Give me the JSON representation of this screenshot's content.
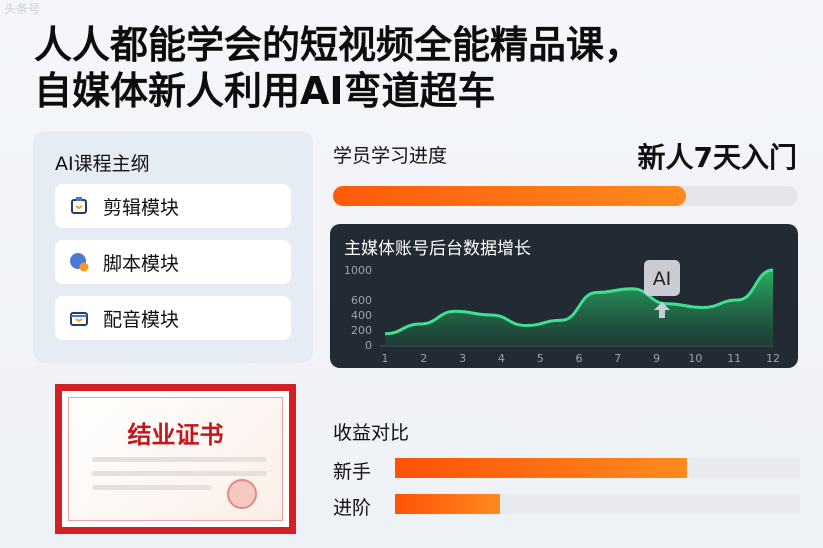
{
  "watermark": "头条号",
  "title": {
    "line1": "人人都能学会的短视频全能精品课，",
    "line2": "自媒体新人利用AI弯道超车"
  },
  "outline": {
    "heading": "AI课程主纲",
    "modules": [
      {
        "label": "剪辑模块",
        "icon": "clipboard-icon"
      },
      {
        "label": "脚本模块",
        "icon": "globe-badge-icon"
      },
      {
        "label": "配音模块",
        "icon": "briefcase-icon"
      }
    ]
  },
  "certificate": {
    "title": "结业证书"
  },
  "progress": {
    "label": "学员学习进度",
    "badge": "新人7天入门",
    "percent": 76,
    "color": "#ff6a10"
  },
  "chart_data": {
    "type": "area",
    "title": "主媒体账号后台数据增长",
    "x_ticks": [
      "1",
      "2",
      "3",
      "4",
      "5",
      "6",
      "7",
      "9",
      "10",
      "11",
      "12"
    ],
    "y_ticks": [
      "0",
      "200",
      "400",
      "600",
      "1000"
    ],
    "ylim": [
      0,
      1000
    ],
    "x": [
      1,
      2,
      3,
      4,
      5,
      6,
      7,
      8,
      9,
      10,
      11,
      12
    ],
    "values": [
      150,
      280,
      450,
      400,
      260,
      330,
      700,
      750,
      550,
      500,
      600,
      1000
    ],
    "annotation": "AI",
    "line_color": "#3ee08f"
  },
  "income": {
    "label": "收益对比",
    "rows": [
      {
        "label": "新手",
        "percent": 72
      },
      {
        "label": "进阶",
        "percent": 26
      }
    ]
  }
}
